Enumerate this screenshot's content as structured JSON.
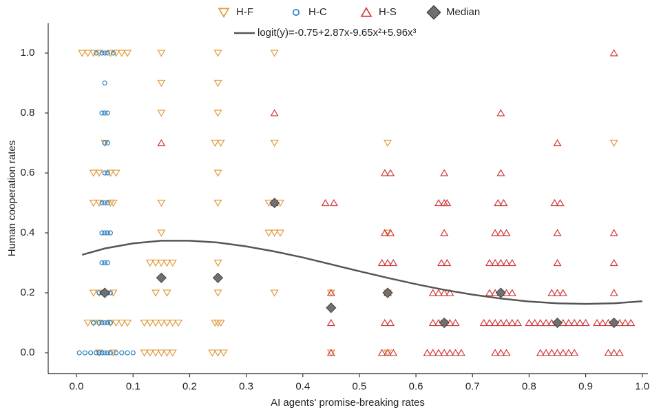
{
  "chart_data": {
    "type": "scatter",
    "xlabel": "AI agents' promise-breaking rates",
    "ylabel": "Human cooperation rates",
    "xlim": [
      -0.05,
      1.01
    ],
    "ylim": [
      -0.07,
      1.1
    ],
    "xticks": [
      {
        "value": 0.0,
        "label": "0.0"
      },
      0.1,
      0.2,
      0.3,
      0.4,
      0.5,
      0.6,
      0.7,
      0.8,
      0.9,
      {
        "value": 1.0,
        "label": "1.0"
      }
    ],
    "yticks": [
      {
        "value": 0.0,
        "label": "0.0"
      },
      0.2,
      0.4,
      0.6,
      0.8,
      {
        "value": 1.0,
        "label": "1.0"
      }
    ],
    "series": [
      {
        "name": "H-F",
        "marker": "triangle-down",
        "color": "#e09a3c",
        "x": [
          0.01,
          0.02,
          0.03,
          0.04,
          0.06,
          0.07,
          0.08,
          0.09,
          0.05,
          0.03,
          0.04,
          0.06,
          0.07,
          0.03,
          0.04,
          0.06,
          0.065,
          0.03,
          0.04,
          0.065,
          0.02,
          0.03,
          0.04,
          0.06,
          0.07,
          0.08,
          0.09,
          0.04,
          0.065,
          0.15,
          0.15,
          0.15,
          0.15,
          0.15,
          0.13,
          0.14,
          0.15,
          0.16,
          0.17,
          0.14,
          0.16,
          0.12,
          0.13,
          0.14,
          0.15,
          0.16,
          0.17,
          0.18,
          0.12,
          0.13,
          0.14,
          0.15,
          0.16,
          0.17,
          0.25,
          0.25,
          0.25,
          0.245,
          0.255,
          0.25,
          0.25,
          0.25,
          0.25,
          0.245,
          0.25,
          0.255,
          0.24,
          0.25,
          0.26,
          0.35,
          0.35,
          0.34,
          0.35,
          0.36,
          0.34,
          0.35,
          0.36,
          0.35,
          0.45,
          0.45,
          0.55,
          0.55,
          0.55,
          0.55,
          0.65,
          0.95
        ],
        "y": [
          1.0,
          1.0,
          1.0,
          1.0,
          1.0,
          1.0,
          1.0,
          1.0,
          0.7,
          0.6,
          0.6,
          0.6,
          0.6,
          0.5,
          0.5,
          0.5,
          0.5,
          0.2,
          0.2,
          0.2,
          0.1,
          0.1,
          0.1,
          0.1,
          0.1,
          0.1,
          0.1,
          0.0,
          0.0,
          1.0,
          0.9,
          0.8,
          0.5,
          0.4,
          0.3,
          0.3,
          0.3,
          0.3,
          0.3,
          0.2,
          0.2,
          0.1,
          0.1,
          0.1,
          0.1,
          0.1,
          0.1,
          0.1,
          0.0,
          0.0,
          0.0,
          0.0,
          0.0,
          0.0,
          1.0,
          0.9,
          0.8,
          0.7,
          0.7,
          0.6,
          0.5,
          0.3,
          0.2,
          0.1,
          0.1,
          0.1,
          0.0,
          0.0,
          0.0,
          1.0,
          0.7,
          0.5,
          0.5,
          0.5,
          0.4,
          0.4,
          0.4,
          0.2,
          0.2,
          0.0,
          0.7,
          0.4,
          0.2,
          0.0,
          0.1,
          0.7
        ]
      },
      {
        "name": "H-C",
        "marker": "circle",
        "color": "#2a7fc0",
        "x": [
          0.035,
          0.045,
          0.05,
          0.055,
          0.065,
          0.05,
          0.045,
          0.05,
          0.055,
          0.05,
          0.055,
          0.05,
          0.055,
          0.045,
          0.05,
          0.055,
          0.045,
          0.05,
          0.055,
          0.06,
          0.045,
          0.05,
          0.055,
          0.04,
          0.045,
          0.05,
          0.055,
          0.06,
          0.03,
          0.04,
          0.045,
          0.05,
          0.055,
          0.06,
          0.005,
          0.015,
          0.025,
          0.035,
          0.04,
          0.045,
          0.05,
          0.055,
          0.06,
          0.07,
          0.08,
          0.09,
          0.1
        ],
        "y": [
          1.0,
          1.0,
          1.0,
          1.0,
          1.0,
          0.9,
          0.8,
          0.8,
          0.8,
          0.7,
          0.7,
          0.6,
          0.6,
          0.5,
          0.5,
          0.5,
          0.4,
          0.4,
          0.4,
          0.4,
          0.3,
          0.3,
          0.3,
          0.2,
          0.2,
          0.2,
          0.2,
          0.2,
          0.1,
          0.1,
          0.1,
          0.1,
          0.1,
          0.1,
          0.0,
          0.0,
          0.0,
          0.0,
          0.0,
          0.0,
          0.0,
          0.0,
          0.0,
          0.0,
          0.0,
          0.0,
          0.0
        ]
      },
      {
        "name": "H-S",
        "marker": "triangle-up",
        "color": "#d0393b",
        "x": [
          0.15,
          0.35,
          0.35,
          0.44,
          0.455,
          0.45,
          0.45,
          0.45,
          0.545,
          0.555,
          0.545,
          0.555,
          0.54,
          0.55,
          0.56,
          0.55,
          0.545,
          0.555,
          0.54,
          0.55,
          0.56,
          0.65,
          0.64,
          0.65,
          0.655,
          0.65,
          0.645,
          0.655,
          0.63,
          0.64,
          0.65,
          0.66,
          0.63,
          0.64,
          0.66,
          0.67,
          0.62,
          0.63,
          0.64,
          0.65,
          0.66,
          0.67,
          0.68,
          0.75,
          0.75,
          0.745,
          0.755,
          0.74,
          0.75,
          0.76,
          0.73,
          0.74,
          0.75,
          0.76,
          0.77,
          0.73,
          0.74,
          0.75,
          0.76,
          0.77,
          0.72,
          0.73,
          0.74,
          0.75,
          0.76,
          0.77,
          0.78,
          0.74,
          0.75,
          0.76,
          0.85,
          0.845,
          0.855,
          0.85,
          0.85,
          0.84,
          0.85,
          0.86,
          0.8,
          0.81,
          0.82,
          0.83,
          0.84,
          0.86,
          0.87,
          0.88,
          0.89,
          0.9,
          0.82,
          0.83,
          0.84,
          0.85,
          0.86,
          0.87,
          0.88,
          0.95,
          0.95,
          0.95,
          0.95,
          0.92,
          0.93,
          0.94,
          0.96,
          0.97,
          0.98,
          0.94,
          0.95,
          0.96
        ],
        "y": [
          0.7,
          0.8,
          0.5,
          0.5,
          0.5,
          0.2,
          0.1,
          0.0,
          0.6,
          0.6,
          0.4,
          0.4,
          0.3,
          0.3,
          0.3,
          0.2,
          0.1,
          0.1,
          0.0,
          0.0,
          0.0,
          0.6,
          0.5,
          0.5,
          0.5,
          0.4,
          0.3,
          0.3,
          0.2,
          0.2,
          0.2,
          0.2,
          0.1,
          0.1,
          0.1,
          0.1,
          0.0,
          0.0,
          0.0,
          0.0,
          0.0,
          0.0,
          0.0,
          0.8,
          0.6,
          0.5,
          0.5,
          0.4,
          0.4,
          0.4,
          0.3,
          0.3,
          0.3,
          0.3,
          0.3,
          0.2,
          0.2,
          0.2,
          0.2,
          0.2,
          0.1,
          0.1,
          0.1,
          0.1,
          0.1,
          0.1,
          0.1,
          0.0,
          0.0,
          0.0,
          0.7,
          0.5,
          0.5,
          0.4,
          0.3,
          0.2,
          0.2,
          0.2,
          0.1,
          0.1,
          0.1,
          0.1,
          0.1,
          0.1,
          0.1,
          0.1,
          0.1,
          0.1,
          0.0,
          0.0,
          0.0,
          0.0,
          0.0,
          0.0,
          0.0,
          1.0,
          0.4,
          0.3,
          0.2,
          0.1,
          0.1,
          0.1,
          0.1,
          0.1,
          0.1,
          0.0,
          0.0,
          0.0
        ]
      },
      {
        "name": "Median",
        "marker": "diamond",
        "color": "#707070",
        "x": [
          0.05,
          0.15,
          0.25,
          0.35,
          0.45,
          0.55,
          0.65,
          0.75,
          0.85,
          0.95
        ],
        "y": [
          0.2,
          0.25,
          0.25,
          0.5,
          0.15,
          0.2,
          0.1,
          0.2,
          0.1,
          0.1
        ]
      },
      {
        "name": "logit(y)=-0.75+2.87x-9.65x²+5.96x³",
        "marker": "line",
        "color": "#555555",
        "x": [
          0.01,
          0.05,
          0.1,
          0.15,
          0.2,
          0.25,
          0.3,
          0.35,
          0.4,
          0.45,
          0.5,
          0.55,
          0.6,
          0.65,
          0.7,
          0.75,
          0.8,
          0.85,
          0.9,
          0.95,
          1.0
        ],
        "y": [
          0.327,
          0.348,
          0.365,
          0.374,
          0.374,
          0.368,
          0.355,
          0.338,
          0.318,
          0.295,
          0.272,
          0.25,
          0.229,
          0.21,
          0.194,
          0.181,
          0.171,
          0.165,
          0.163,
          0.165,
          0.172
        ]
      }
    ]
  }
}
